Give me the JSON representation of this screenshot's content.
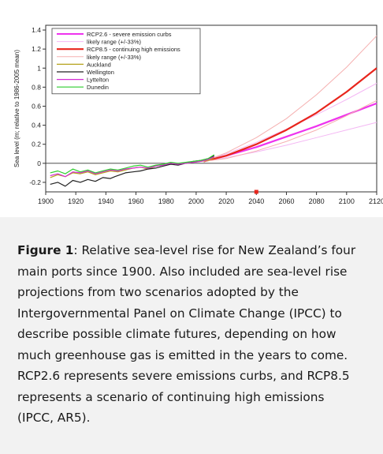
{
  "caption": {
    "label": "Figure 1",
    "text": ": Relative sea-level rise for New Zealand’s four main ports since 1900. Also included are sea-level rise projections from two scenarios adopted by the Intergovernmental Panel on Climate Change (IPCC) to describe possible climate futures, depending on how much greenhouse gas is emitted in the years to come. RCP2.6 represents severe emissions curbs, and RCP8.5 represents a scenario of continuing high emissions (IPCC, AR5)."
  },
  "chart_data": {
    "type": "line",
    "title": "",
    "xlabel": "",
    "ylabel": "Sea level (m; relative to 1986-2005 mean)",
    "xlim": [
      1900,
      2120
    ],
    "ylim": [
      -0.3,
      1.45
    ],
    "xticks": [
      1900,
      1920,
      1940,
      1960,
      1980,
      2000,
      2020,
      2040,
      2060,
      2080,
      2100,
      2120
    ],
    "yticks": [
      -0.2,
      0,
      0.2,
      0.4,
      0.6,
      0.8,
      1,
      1.2,
      1.4
    ],
    "ytick_labels": [
      "-0.2",
      "0",
      "0.2",
      "0.4",
      "0.6",
      "0.8",
      "1",
      "1.2",
      "1.4"
    ],
    "grid": false,
    "legend_position": "top-left",
    "legend": [
      {
        "label": "RCP2.6 - severe emission curbs",
        "color": "#ee33ee",
        "width": 2
      },
      {
        "label": "likely range (+/-33%)",
        "color": "#f4b8f4",
        "width": 1
      },
      {
        "label": "RCP8.5 - continuing high emissions",
        "color": "#e8251c",
        "width": 2.2
      },
      {
        "label": "likely range (+/-33%)",
        "color": "#f5b0b0",
        "width": 1
      },
      {
        "label": "Auckland",
        "color": "#b5a21a",
        "width": 1.2
      },
      {
        "label": "Wellington",
        "color": "#222222",
        "width": 1.2
      },
      {
        "label": "Lyttelton",
        "color": "#d42cd4",
        "width": 1.2
      },
      {
        "label": "Dunedin",
        "color": "#2ecc2e",
        "width": 1.2
      }
    ],
    "series": [
      {
        "name": "RCP2.6 - severe emission curbs",
        "color": "#ee33ee",
        "x": [
          2005,
          2020,
          2040,
          2060,
          2080,
          2100,
          2120
        ],
        "y": [
          0.02,
          0.08,
          0.17,
          0.28,
          0.39,
          0.51,
          0.63
        ]
      },
      {
        "name": "likely range (+/-33%)",
        "color": "#f4b8f4",
        "x": [
          2005,
          2020,
          2040,
          2060,
          2080,
          2100,
          2120
        ],
        "y": [
          0.02,
          0.1,
          0.22,
          0.36,
          0.51,
          0.67,
          0.84
        ]
      },
      {
        "name": "likely range (+/-33%)",
        "color": "#f4b8f4",
        "x": [
          2005,
          2020,
          2040,
          2060,
          2080,
          2100,
          2120
        ],
        "y": [
          0.02,
          0.06,
          0.12,
          0.19,
          0.27,
          0.35,
          0.43
        ]
      },
      {
        "name": "RCP8.5 - continuing high emissions",
        "color": "#e8251c",
        "x": [
          2005,
          2020,
          2040,
          2060,
          2080,
          2100,
          2120
        ],
        "y": [
          0.02,
          0.08,
          0.2,
          0.35,
          0.53,
          0.75,
          1.0
        ]
      },
      {
        "name": "likely range (+/-33%)",
        "color": "#f5b0b0",
        "x": [
          2005,
          2020,
          2040,
          2060,
          2080,
          2100,
          2120
        ],
        "y": [
          0.02,
          0.11,
          0.27,
          0.47,
          0.72,
          1.01,
          1.34
        ]
      },
      {
        "name": "likely range (+/-33%)",
        "color": "#f5b0b0",
        "x": [
          2005,
          2020,
          2040,
          2060,
          2080,
          2100,
          2120
        ],
        "y": [
          0.02,
          0.05,
          0.13,
          0.23,
          0.35,
          0.5,
          0.66
        ]
      },
      {
        "name": "Auckland",
        "color": "#b5a21a",
        "x": [
          1903,
          1908,
          1913,
          1918,
          1923,
          1928,
          1933,
          1938,
          1943,
          1948,
          1953,
          1958,
          1963,
          1968,
          1973,
          1978,
          1983,
          1988,
          1993,
          1998,
          2003,
          2008,
          2012
        ],
        "y": [
          -0.15,
          -0.12,
          -0.14,
          -0.1,
          -0.11,
          -0.09,
          -0.12,
          -0.1,
          -0.08,
          -0.09,
          -0.07,
          -0.05,
          -0.04,
          -0.06,
          -0.03,
          -0.02,
          0.0,
          -0.01,
          0.0,
          0.01,
          0.02,
          0.03,
          0.06
        ]
      },
      {
        "name": "Wellington",
        "color": "#222222",
        "x": [
          1903,
          1908,
          1913,
          1918,
          1923,
          1928,
          1933,
          1938,
          1943,
          1946,
          1953,
          1958,
          1963,
          1968,
          1973,
          1978,
          1983,
          1988,
          1993,
          1998,
          2003,
          2008,
          2012
        ],
        "y": [
          -0.22,
          -0.2,
          -0.24,
          -0.18,
          -0.2,
          -0.17,
          -0.19,
          -0.15,
          -0.16,
          -0.14,
          -0.1,
          -0.09,
          -0.08,
          -0.06,
          -0.05,
          -0.03,
          -0.01,
          -0.02,
          0.0,
          0.02,
          0.03,
          0.05,
          0.08
        ]
      },
      {
        "name": "Lyttelton",
        "color": "#d42cd4",
        "x": [
          1903,
          1908,
          1913,
          1918,
          1923,
          1928,
          1933,
          1938,
          1943,
          1948,
          1953,
          1958,
          1963,
          1968,
          1973,
          1978,
          1983,
          1988,
          1993,
          1998,
          2003,
          2008,
          2012
        ],
        "y": [
          -0.13,
          -0.11,
          -0.14,
          -0.09,
          -0.1,
          -0.08,
          -0.11,
          -0.09,
          -0.07,
          -0.08,
          -0.06,
          -0.05,
          -0.04,
          -0.05,
          -0.03,
          -0.02,
          0.0,
          -0.01,
          0.0,
          0.01,
          0.02,
          0.04,
          0.07
        ]
      },
      {
        "name": "Dunedin",
        "color": "#2ecc2e",
        "x": [
          1903,
          1908,
          1913,
          1918,
          1923,
          1928,
          1933,
          1938,
          1943,
          1948,
          1953,
          1958,
          1963,
          1968,
          1973,
          1978,
          1983,
          1988,
          1993,
          1998,
          2003,
          2008,
          2012
        ],
        "y": [
          -0.1,
          -0.08,
          -0.11,
          -0.06,
          -0.09,
          -0.07,
          -0.1,
          -0.08,
          -0.06,
          -0.07,
          -0.05,
          -0.03,
          -0.02,
          -0.04,
          -0.02,
          -0.01,
          0.01,
          0.0,
          0.01,
          0.02,
          0.03,
          0.05,
          0.09
        ]
      }
    ],
    "markers": [
      {
        "x": 2040,
        "y": -0.31,
        "color": "#e8251c"
      }
    ]
  }
}
